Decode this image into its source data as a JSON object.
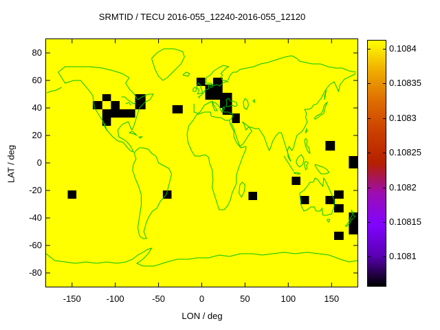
{
  "chart_data": {
    "type": "heatmap",
    "title": "SRMTID / TECU 2016-055_12240-2016-055_12120",
    "xlabel": "LON / deg",
    "ylabel": "LAT / deg",
    "xlim": [
      -180,
      180
    ],
    "ylim": [
      -90,
      90
    ],
    "xticks": [
      -150,
      -100,
      -50,
      0,
      50,
      100,
      150
    ],
    "yticks": [
      80,
      60,
      40,
      20,
      0,
      -20,
      -40,
      -60,
      -80
    ],
    "grid": false,
    "legend_position": "right-colorbar",
    "background_value_color": "#ffff00",
    "cell_color": "#000000",
    "coast_color": "#00c000",
    "colorbar": {
      "tick_labels": [
        "0.1084",
        "0.10835",
        "0.1083",
        "0.10825",
        "0.1082",
        "0.10815",
        "0.1081"
      ],
      "palette_bottom_to_top": [
        "#000000",
        "#5a00b4",
        "#8004ff",
        "#9c0db4",
        "#b42000",
        "#ca3e00",
        "#dd6b00",
        "#efab00",
        "#ffff00"
      ]
    },
    "black_cells_lon0_lon1_lat0_lat1": [
      [
        -115,
        -105,
        45,
        50
      ],
      [
        -126,
        -115,
        39,
        45
      ],
      [
        -105,
        -95,
        39,
        45
      ],
      [
        -115,
        -77,
        33,
        39
      ],
      [
        -115,
        -105,
        27,
        33
      ],
      [
        -77,
        -65,
        39,
        50
      ],
      [
        -34,
        -22,
        36,
        42
      ],
      [
        -6,
        4,
        56,
        62
      ],
      [
        13,
        24,
        56,
        62
      ],
      [
        4,
        24,
        46,
        57
      ],
      [
        21,
        35,
        40,
        51
      ],
      [
        24,
        35,
        35,
        41
      ],
      [
        35,
        44,
        29,
        36
      ],
      [
        143,
        154,
        9,
        16
      ],
      [
        170,
        180,
        -4,
        5
      ],
      [
        -155,
        -145,
        -26,
        -20
      ],
      [
        -45,
        -35,
        -26,
        -20
      ],
      [
        54,
        64,
        -27,
        -21
      ],
      [
        104,
        114,
        -16,
        -10
      ],
      [
        114,
        124,
        -30,
        -24
      ],
      [
        143,
        154,
        -30,
        -24
      ],
      [
        153,
        164,
        -26,
        -20
      ],
      [
        153,
        164,
        -36,
        -30
      ],
      [
        170,
        180,
        -52,
        -36
      ],
      [
        153,
        164,
        -56,
        -50
      ]
    ],
    "coastlines": [
      [
        -166,
        66,
        -158,
        58,
        -148,
        60,
        -140,
        60,
        -132,
        54,
        -126,
        49,
        -124,
        40,
        -117,
        33,
        -112,
        28,
        -110,
        24,
        -103,
        19,
        -97,
        16,
        -91,
        15,
        -87,
        12,
        -83,
        9,
        -79,
        8,
        -82,
        12,
        -86,
        15,
        -90,
        17,
        -96,
        19,
        -97,
        24,
        -92,
        28,
        -85,
        30,
        -81,
        24,
        -79,
        26,
        -75,
        34,
        -72,
        40,
        -66,
        44,
        -60,
        46,
        -56,
        50,
        -62,
        50,
        -69,
        48,
        -74,
        46,
        -78,
        50,
        -84,
        54,
        -88,
        58,
        -84,
        62,
        -92,
        65,
        -102,
        67,
        -115,
        69,
        -130,
        70,
        -145,
        70,
        -158,
        70,
        -166,
        66
      ],
      [
        -162,
        55,
        -168,
        53,
        -175,
        52,
        -179,
        51
      ],
      [
        -110,
        24,
        -112,
        27,
        -114,
        30,
        -112,
        26,
        -109,
        23
      ],
      [
        -93,
        48,
        -89,
        48,
        -86,
        46,
        -83,
        45,
        -79,
        43,
        -76,
        44
      ],
      [
        -88,
        43,
        -84,
        44,
        -82,
        42
      ],
      [
        -84,
        22,
        -80,
        23,
        -75,
        20,
        -78,
        21,
        -84,
        22
      ],
      [
        -73,
        19,
        -69,
        19,
        -71,
        18,
        -73,
        19
      ],
      [
        -58,
        76,
        -52,
        80,
        -44,
        83,
        -32,
        83,
        -22,
        81,
        -20,
        77,
        -24,
        72,
        -32,
        67,
        -40,
        62,
        -45,
        60,
        -50,
        63,
        -54,
        68,
        -58,
        76
      ],
      [
        -22,
        64,
        -18,
        66,
        -14,
        65,
        -16,
        63,
        -22,
        64
      ],
      [
        -78,
        7,
        -76,
        3,
        -79,
        -1,
        -80,
        -5,
        -77,
        -11,
        -73,
        -17,
        -70,
        -23,
        -70,
        -31,
        -72,
        -39,
        -74,
        -47,
        -72,
        -53,
        -68,
        -55,
        -64,
        -55,
        -67,
        -50,
        -64,
        -43,
        -61,
        -39,
        -57,
        -35,
        -52,
        -33,
        -48,
        -28,
        -41,
        -23,
        -38,
        -16,
        -35,
        -8,
        -38,
        -4,
        -44,
        -2,
        -50,
        0,
        -53,
        5,
        -58,
        7,
        -62,
        10,
        -68,
        11,
        -72,
        11,
        -76,
        9,
        -78,
        7
      ],
      [
        -6,
        35,
        -10,
        31,
        -15,
        27,
        -17,
        21,
        -16,
        15,
        -12,
        9,
        -8,
        5,
        -2,
        5,
        4,
        6,
        8,
        4,
        9,
        0,
        12,
        -5,
        13,
        -12,
        12,
        -18,
        15,
        -24,
        18,
        -30,
        20,
        -34,
        26,
        -34,
        30,
        -31,
        33,
        -27,
        35,
        -22,
        40,
        -15,
        40,
        -9,
        43,
        -3,
        47,
        4,
        51,
        10,
        51,
        12,
        45,
        11,
        40,
        15,
        37,
        19,
        37,
        23,
        33,
        28,
        32,
        31,
        27,
        31,
        22,
        33,
        18,
        33,
        11,
        34,
        10,
        37,
        3,
        37,
        -6,
        35
      ],
      [
        44,
        -16,
        47,
        -14,
        50,
        -16,
        49,
        -21,
        46,
        -25,
        43,
        -22,
        44,
        -16
      ],
      [
        -5,
        50,
        -3,
        53,
        -6,
        55,
        -4,
        58,
        -2,
        57,
        0,
        53,
        1,
        51,
        -5,
        50
      ],
      [
        -10,
        52,
        -10,
        54,
        -8,
        55,
        -6,
        54,
        -7,
        52,
        -10,
        52
      ],
      [
        5,
        58,
        5,
        62,
        10,
        64,
        14,
        67,
        19,
        69,
        25,
        71,
        31,
        70,
        28,
        69,
        25,
        67,
        22,
        65,
        24,
        64,
        22,
        62,
        24,
        60,
        28,
        60,
        30,
        59,
        27,
        59,
        24,
        58,
        21,
        56,
        17,
        57,
        13,
        56,
        11,
        58,
        8,
        58,
        5,
        58
      ],
      [
        -9,
        43,
        -9,
        37,
        -5,
        36,
        -2,
        37,
        0,
        39,
        3,
        42,
        6,
        43,
        9,
        44,
        12,
        45,
        14,
        42,
        16,
        40,
        18,
        38,
        15,
        38,
        13,
        41,
        12,
        44,
        15,
        44,
        19,
        42,
        21,
        40,
        23,
        37,
        24,
        40,
        26,
        41,
        26,
        39,
        24,
        38,
        26,
        37,
        28,
        37,
        31,
        37,
        33,
        36,
        36,
        36,
        36,
        34,
        34,
        32,
        32,
        31
      ],
      [
        28,
        41,
        31,
        41,
        35,
        42,
        39,
        41,
        41,
        42,
        40,
        44,
        36,
        45,
        33,
        45,
        31,
        47,
        28,
        46,
        29,
        44,
        28,
        41
      ],
      [
        -2,
        47,
        -4,
        48,
        -1,
        49,
        2,
        51,
        4,
        53,
        8,
        54,
        8,
        57,
        10,
        57,
        10,
        55,
        12,
        55,
        12,
        57
      ],
      [
        30,
        60,
        33,
        64,
        36,
        66,
        40,
        66,
        44,
        68,
        52,
        69,
        60,
        70,
        68,
        72,
        76,
        73,
        86,
        75,
        96,
        77,
        104,
        78,
        110,
        76,
        113,
        74,
        120,
        73,
        128,
        72,
        137,
        72,
        146,
        70,
        155,
        69,
        162,
        69,
        170,
        67,
        178,
        66
      ],
      [
        178,
        65,
        172,
        63,
        165,
        61,
        160,
        57,
        158,
        52,
        156,
        55,
        153,
        59,
        148,
        57,
        143,
        53,
        138,
        47,
        133,
        43,
        129,
        42,
        127,
        40,
        124,
        39,
        119,
        39,
        121,
        36,
        120,
        33,
        122,
        30,
        119,
        26,
        116,
        23,
        110,
        20,
        108,
        16,
        106,
        11,
        104,
        9,
        101,
        12,
        99,
        9,
        100,
        4,
        103,
        1
      ],
      [
        103,
        1,
        100,
        6,
        98,
        10,
        95,
        16,
        92,
        22,
        89,
        22,
        86,
        20,
        82,
        16,
        80,
        12,
        78,
        9,
        76,
        12,
        72,
        19,
        69,
        22,
        66,
        25,
        61,
        25,
        57,
        26,
        54,
        26,
        51,
        24,
        49,
        28,
        47,
        30,
        51,
        28,
        55,
        26,
        58,
        23,
        55,
        21,
        52,
        18,
        48,
        14,
        44,
        12,
        40,
        19,
        37,
        25,
        34,
        29
      ],
      [
        50,
        47,
        53,
        45,
        54,
        42,
        52,
        39,
        49,
        40,
        48,
        44,
        50,
        47
      ],
      [
        59,
        45,
        61,
        46,
        61,
        44,
        59,
        45
      ],
      [
        130,
        32,
        132,
        34,
        135,
        35,
        138,
        36,
        140,
        38,
        141,
        41,
        143,
        43,
        145,
        44,
        143,
        41,
        141,
        36,
        136,
        34,
        132,
        32,
        130,
        32
      ],
      [
        142,
        46,
        143,
        50,
        144,
        53,
        142,
        49,
        142,
        46
      ],
      [
        121,
        25,
        122,
        23,
        120,
        22,
        121,
        25
      ],
      [
        120,
        18,
        122,
        16,
        121,
        13,
        124,
        11,
        125,
        7,
        123,
        8,
        120,
        12,
        119,
        16,
        120,
        18
      ],
      [
        95,
        5,
        98,
        2,
        101,
        -1,
        104,
        -4,
        106,
        -6,
        103,
        -3,
        99,
        1,
        95,
        5
      ],
      [
        106,
        -7,
        111,
        -7,
        114,
        -8,
        109,
        -8,
        106,
        -7
      ],
      [
        109,
        1,
        111,
        4,
        115,
        6,
        118,
        3,
        117,
        -1,
        113,
        -3,
        110,
        -1,
        109,
        1
      ],
      [
        119,
        1,
        121,
        1,
        123,
        0,
        121,
        -2,
        122,
        -4,
        120,
        -5,
        119,
        -2,
        119,
        1
      ],
      [
        131,
        -1,
        135,
        -2,
        140,
        -3,
        145,
        -5,
        147,
        -7,
        143,
        -8,
        138,
        -8,
        134,
        -5,
        131,
        -2,
        131,
        -1
      ],
      [
        113,
        -22,
        114,
        -26,
        115,
        -31,
        118,
        -35,
        122,
        -34,
        126,
        -32,
        130,
        -32,
        132,
        -35,
        137,
        -35,
        139,
        -33,
        140,
        -38,
        145,
        -38,
        150,
        -37,
        153,
        -32,
        153,
        -27,
        151,
        -24,
        148,
        -20,
        146,
        -17,
        143,
        -13,
        141,
        -11,
        140,
        -17,
        136,
        -14,
        134,
        -12,
        131,
        -11,
        129,
        -14,
        125,
        -14,
        122,
        -17,
        118,
        -20,
        113,
        -22
      ],
      [
        145,
        -41,
        148,
        -41,
        147,
        -43,
        145,
        -42,
        145,
        -41
      ],
      [
        173,
        -34,
        175,
        -37,
        177,
        -39,
        174,
        -41,
        173,
        -41,
        172,
        -43,
        168,
        -46,
        166,
        -46,
        170,
        -43,
        172,
        -40,
        174,
        -38,
        173,
        -34
      ],
      [
        -180,
        -66,
        -170,
        -71,
        -158,
        -72,
        -146,
        -73,
        -134,
        -72,
        -122,
        -73,
        -110,
        -72,
        -98,
        -73,
        -88,
        -72,
        -80,
        -70,
        -74,
        -67,
        -68,
        -65,
        -63,
        -63,
        -58,
        -62,
        -62,
        -66,
        -68,
        -70,
        -75,
        -73,
        -68,
        -75,
        -55,
        -75,
        -40,
        -72,
        -28,
        -70,
        -15,
        -70,
        -5,
        -69,
        8,
        -69,
        20,
        -67,
        32,
        -68,
        45,
        -66,
        58,
        -66,
        70,
        -67,
        82,
        -66,
        95,
        -65,
        108,
        -66,
        122,
        -65,
        135,
        -66,
        147,
        -67,
        160,
        -70,
        170,
        -72,
        180,
        -71
      ]
    ]
  }
}
